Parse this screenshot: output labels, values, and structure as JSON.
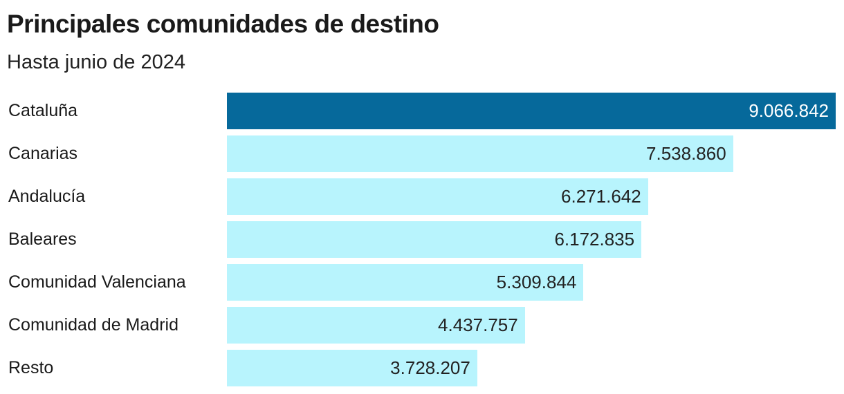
{
  "chart_data": {
    "type": "bar",
    "orientation": "horizontal",
    "title": "Principales comunidades de destino",
    "subtitle": "Hasta junio de 2024",
    "categories": [
      "Cataluña",
      "Canarias",
      "Andalucía",
      "Baleares",
      "Comunidad Valenciana",
      "Comunidad de Madrid",
      "Resto"
    ],
    "values": [
      9066842,
      7538860,
      6271642,
      6172835,
      5309844,
      4437757,
      3728207
    ],
    "value_labels": [
      "9.066.842",
      "7.538.860",
      "6.271.642",
      "6.172.835",
      "5.309.844",
      "4.437.757",
      "3.728.207"
    ],
    "highlight_index": 0,
    "xlabel": "",
    "ylabel": "",
    "colors": {
      "highlight": "#06699b",
      "default": "#b8f4fd",
      "highlight_text": "#ffffff",
      "default_text": "#222222"
    }
  }
}
